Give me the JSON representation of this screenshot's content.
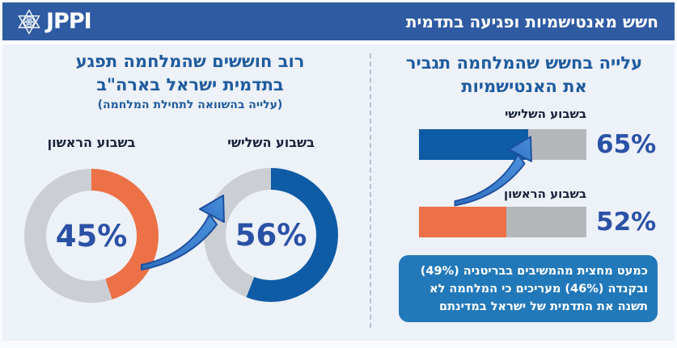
{
  "header": {
    "logo_text": "JPPI",
    "title": "חשש מאנטישמיות ופגיעה בתדמית"
  },
  "chart_data": [
    {
      "type": "pie",
      "subtype": "donut-pair",
      "title": "רוב חוששים שהמלחמה תפגע בתדמית ישראל בארה\"ב",
      "title_lines": [
        "רוב חוששים שהמלחמה תפגע",
        "בתדמית ישראל בארה\"ב"
      ],
      "subtitle": "(עלייה בהשוואה לתחילת המלחמה)",
      "donuts": [
        {
          "label": "בשבוע הראשון",
          "pct": 45,
          "display": "45%",
          "color": "#ed7146"
        },
        {
          "label": "בשבוע השלישי",
          "pct": 56,
          "display": "56%",
          "color": "#0e5ba6"
        }
      ],
      "track_color": "#cbced3",
      "annotation": "upward-arrow-from-first-to-third-week"
    },
    {
      "type": "bar",
      "orientation": "horizontal",
      "title": "עלייה בחשש שהמלחמה תגביר את האנטישמיות",
      "title_lines": [
        "עלייה בחשש שהמלחמה תגביר",
        "את האנטישמיות"
      ],
      "bars": [
        {
          "label": "בשבוע השלישי",
          "pct": 65,
          "display": "65%",
          "color": "#0e5ba6"
        },
        {
          "label": "בשבוע הראשון",
          "pct": 52,
          "display": "52%",
          "color": "#ed7146"
        }
      ],
      "track_color": "#b5b8bb",
      "xlim": [
        0,
        100
      ],
      "annotation": "upward-arrow-from-first-to-third-week"
    }
  ],
  "note": {
    "lines": [
      "כמעט מחצית מהמשיבים בבריטניה (49%)",
      "ובקנדה (46%) מעריכים כי המלחמה לא",
      "תשנה את התדמית של ישראל במדינתם"
    ]
  },
  "colors": {
    "page_bg": "#fafbff",
    "header_bg": "#2f5ba3",
    "panel_bg": "#edf1f8",
    "title_text": "#1f5b9e",
    "label_text": "#18223a",
    "pct_text": "#2a51a5",
    "note_bg": "#2279ba",
    "orange": "#ed7146",
    "blue": "#0e5ba6",
    "arrow_light": "#4b90dc",
    "arrow_dark": "#1d4f9e"
  }
}
